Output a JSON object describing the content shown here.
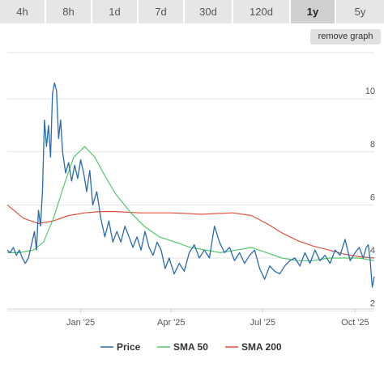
{
  "range_buttons": [
    {
      "label": "4h"
    },
    {
      "label": "8h"
    },
    {
      "label": "1d"
    },
    {
      "label": "7d"
    },
    {
      "label": "30d"
    },
    {
      "label": "120d"
    },
    {
      "label": "1y",
      "active": true
    },
    {
      "label": "5y"
    }
  ],
  "remove_graph_label": "remove graph",
  "colors": {
    "price": "#2a6aad",
    "sma50": "#54c866",
    "sma200": "#e0533f",
    "grid": "#e3e3e3"
  },
  "chart_data": {
    "type": "line",
    "x_range": [
      "2024-10-20",
      "2025-10-20"
    ],
    "ylim": [
      2,
      12
    ],
    "y_ticks": [
      2,
      4,
      6,
      8,
      10
    ],
    "x_ticks": [
      {
        "label": "Jan '25",
        "date": "2025-01-01"
      },
      {
        "label": "Apr '25",
        "date": "2025-04-01"
      },
      {
        "label": "Jul '25",
        "date": "2025-07-01"
      },
      {
        "label": "Oct '25",
        "date": "2025-10-01"
      }
    ],
    "grid": true,
    "legend_position": "bottom",
    "series": [
      {
        "name": "Price",
        "x": [
          "2024-10-20",
          "2024-10-23",
          "2024-10-26",
          "2024-10-29",
          "2024-11-01",
          "2024-11-04",
          "2024-11-07",
          "2024-11-10",
          "2024-11-13",
          "2024-11-16",
          "2024-11-18",
          "2024-11-20",
          "2024-11-22",
          "2024-11-24",
          "2024-11-26",
          "2024-11-28",
          "2024-11-30",
          "2024-12-02",
          "2024-12-04",
          "2024-12-06",
          "2024-12-08",
          "2024-12-10",
          "2024-12-12",
          "2024-12-14",
          "2024-12-17",
          "2024-12-20",
          "2024-12-23",
          "2024-12-26",
          "2024-12-29",
          "2025-01-01",
          "2025-01-04",
          "2025-01-07",
          "2025-01-10",
          "2025-01-13",
          "2025-01-17",
          "2025-01-21",
          "2025-01-25",
          "2025-01-29",
          "2025-02-02",
          "2025-02-06",
          "2025-02-10",
          "2025-02-14",
          "2025-02-18",
          "2025-02-22",
          "2025-02-26",
          "2025-03-02",
          "2025-03-06",
          "2025-03-10",
          "2025-03-14",
          "2025-03-18",
          "2025-03-22",
          "2025-03-26",
          "2025-03-30",
          "2025-04-04",
          "2025-04-09",
          "2025-04-14",
          "2025-04-19",
          "2025-04-24",
          "2025-04-29",
          "2025-05-04",
          "2025-05-09",
          "2025-05-14",
          "2025-05-19",
          "2025-05-24",
          "2025-05-29",
          "2025-06-03",
          "2025-06-08",
          "2025-06-13",
          "2025-06-18",
          "2025-06-23",
          "2025-06-28",
          "2025-07-03",
          "2025-07-08",
          "2025-07-13",
          "2025-07-18",
          "2025-07-23",
          "2025-07-28",
          "2025-08-02",
          "2025-08-07",
          "2025-08-12",
          "2025-08-17",
          "2025-08-22",
          "2025-08-27",
          "2025-09-01",
          "2025-09-06",
          "2025-09-11",
          "2025-09-16",
          "2025-09-21",
          "2025-09-26",
          "2025-10-01",
          "2025-10-05",
          "2025-10-09",
          "2025-10-12",
          "2025-10-14",
          "2025-10-16",
          "2025-10-18",
          "2025-10-20"
        ],
        "values": [
          4.3,
          4.2,
          4.4,
          4.1,
          4.3,
          4.0,
          3.8,
          4.0,
          4.5,
          5.0,
          4.3,
          5.8,
          5.2,
          6.5,
          9.2,
          8.2,
          9.0,
          7.8,
          10.2,
          10.6,
          10.3,
          8.5,
          9.2,
          8.0,
          7.2,
          7.6,
          6.9,
          7.5,
          7.0,
          7.7,
          7.2,
          6.5,
          7.3,
          6.0,
          6.5,
          5.5,
          4.8,
          5.4,
          4.6,
          5.0,
          4.6,
          5.2,
          4.8,
          4.4,
          4.8,
          4.3,
          5.0,
          4.4,
          4.1,
          4.6,
          4.3,
          3.6,
          4.0,
          3.4,
          3.8,
          3.5,
          4.2,
          4.5,
          4.0,
          4.3,
          4.0,
          5.2,
          4.6,
          4.2,
          4.4,
          3.9,
          4.2,
          3.8,
          4.1,
          4.3,
          3.6,
          3.2,
          3.7,
          3.5,
          3.4,
          3.7,
          3.9,
          4.0,
          3.7,
          4.2,
          3.8,
          4.3,
          3.9,
          4.1,
          3.8,
          4.3,
          4.1,
          4.7,
          3.9,
          4.2,
          4.4,
          4.0,
          4.4,
          4.5,
          3.9,
          2.9,
          3.3
        ]
      },
      {
        "name": "SMA 50",
        "x": [
          "2024-10-20",
          "2024-11-01",
          "2024-11-15",
          "2024-11-25",
          "2024-12-05",
          "2024-12-15",
          "2024-12-25",
          "2025-01-05",
          "2025-01-15",
          "2025-01-25",
          "2025-02-05",
          "2025-02-20",
          "2025-03-05",
          "2025-03-20",
          "2025-04-05",
          "2025-04-20",
          "2025-05-05",
          "2025-05-20",
          "2025-06-05",
          "2025-06-20",
          "2025-07-05",
          "2025-07-20",
          "2025-08-05",
          "2025-08-20",
          "2025-09-05",
          "2025-09-20",
          "2025-10-05",
          "2025-10-20"
        ],
        "values": [
          4.2,
          4.2,
          4.3,
          4.6,
          5.5,
          6.7,
          7.8,
          8.2,
          7.8,
          7.1,
          6.4,
          5.7,
          5.2,
          4.8,
          4.6,
          4.4,
          4.3,
          4.2,
          4.3,
          4.4,
          4.2,
          4.0,
          3.9,
          3.9,
          4.0,
          4.0,
          4.0,
          3.9
        ]
      },
      {
        "name": "SMA 200",
        "x": [
          "2024-10-20",
          "2024-11-05",
          "2024-11-20",
          "2024-12-05",
          "2024-12-20",
          "2025-01-05",
          "2025-01-20",
          "2025-02-05",
          "2025-03-01",
          "2025-04-01",
          "2025-05-01",
          "2025-06-01",
          "2025-06-20",
          "2025-07-05",
          "2025-07-20",
          "2025-08-05",
          "2025-08-20",
          "2025-09-05",
          "2025-09-20",
          "2025-10-05",
          "2025-10-20"
        ],
        "values": [
          6.0,
          5.5,
          5.3,
          5.4,
          5.6,
          5.7,
          5.75,
          5.75,
          5.7,
          5.7,
          5.65,
          5.7,
          5.6,
          5.3,
          4.95,
          4.65,
          4.45,
          4.3,
          4.15,
          4.05,
          4.0
        ]
      }
    ]
  }
}
